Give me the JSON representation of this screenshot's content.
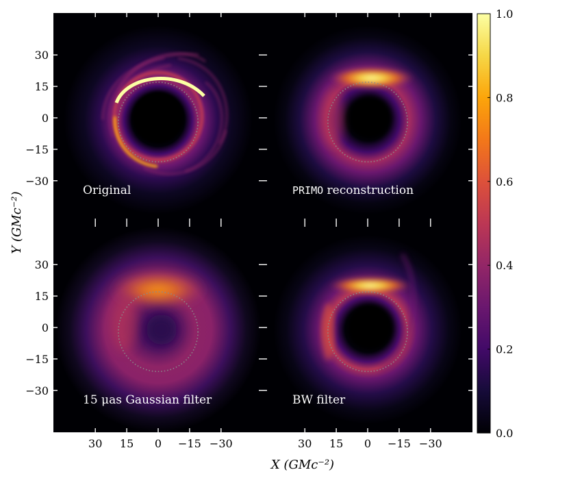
{
  "chart_data": {
    "type": "heatmap",
    "colormap": "inferno",
    "panels": [
      {
        "label": "Original",
        "label_mono": "",
        "ring": "sharp spiral ring"
      },
      {
        "label": " reconstruction",
        "label_mono": "PRIMO",
        "ring": "smooth ring"
      },
      {
        "label": "15 μas Gaussian filter",
        "label_mono": "",
        "ring": "blurred ring"
      },
      {
        "label": "BW filter",
        "label_mono": "",
        "ring": "filtered ring"
      }
    ],
    "xlabel": "X (GMc⁻²)",
    "ylabel": "Y (GMc⁻²)",
    "x_ticks": [
      "30",
      "15",
      "0",
      "−15",
      "−30"
    ],
    "x_tick_values": [
      30,
      15,
      0,
      -15,
      -30
    ],
    "y_ticks": [
      "30",
      "15",
      "0",
      "−15",
      "−30"
    ],
    "y_tick_values": [
      30,
      15,
      0,
      -15,
      -30
    ],
    "xlim": [
      50,
      -50
    ],
    "ylim": [
      -50,
      50
    ],
    "colorbar": {
      "ticks": [
        "0.0",
        "0.2",
        "0.4",
        "0.6",
        "0.8",
        "1.0"
      ],
      "values": [
        0.0,
        0.2,
        0.4,
        0.6,
        0.8,
        1.0
      ],
      "range": [
        0,
        1
      ]
    },
    "reference_circle": {
      "center": [
        0,
        -2
      ],
      "radius": 19
    }
  }
}
